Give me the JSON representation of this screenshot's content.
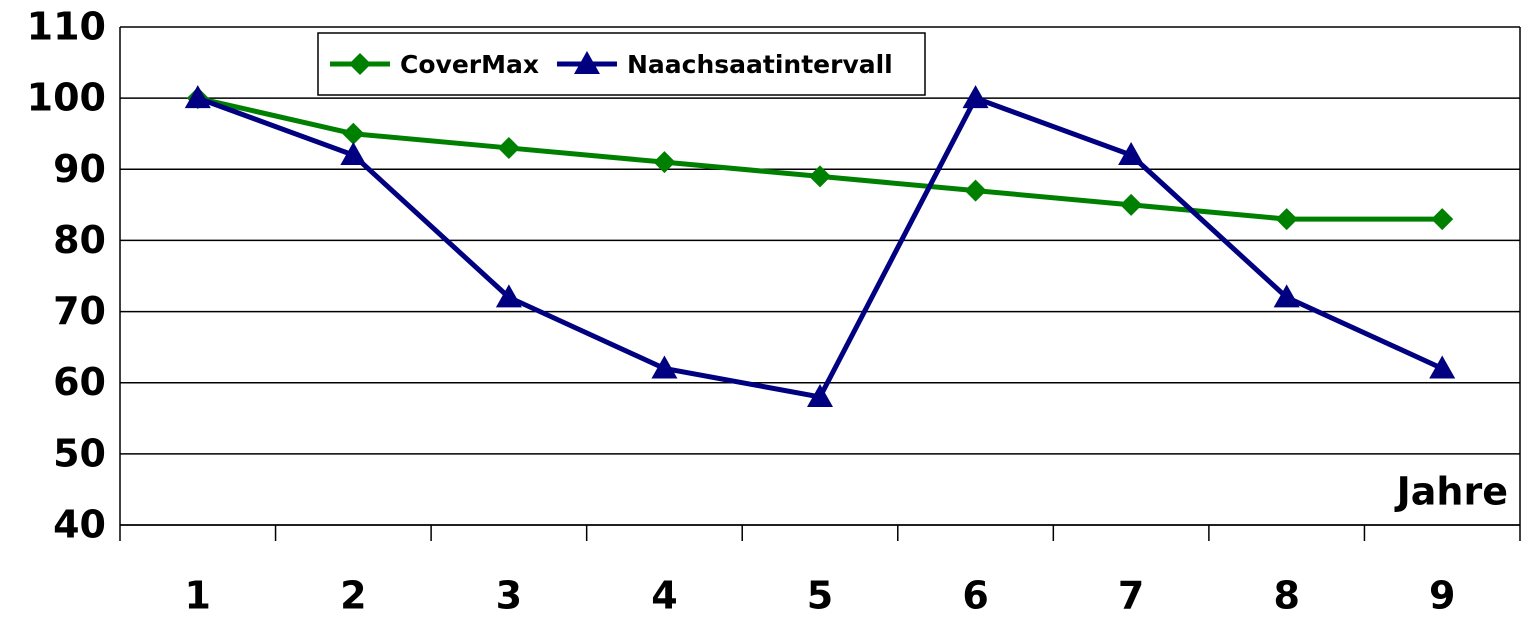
{
  "chart_data": {
    "type": "line",
    "categories": [
      "1",
      "2",
      "3",
      "4",
      "5",
      "6",
      "7",
      "8",
      "9"
    ],
    "series": [
      {
        "name": "CoverMax",
        "color": "#008000",
        "marker": "diamond",
        "values": [
          100,
          95,
          93,
          91,
          89,
          87,
          85,
          83,
          83
        ]
      },
      {
        "name": "Naachsaatintervall",
        "color": "#000080",
        "marker": "triangle",
        "values": [
          100,
          92,
          72,
          62,
          58,
          100,
          92,
          72,
          62
        ]
      }
    ],
    "xlabel": "Jahre",
    "ylim": [
      40,
      110
    ],
    "yticks": [
      40,
      50,
      60,
      70,
      80,
      90,
      100,
      110
    ],
    "grid": true
  }
}
